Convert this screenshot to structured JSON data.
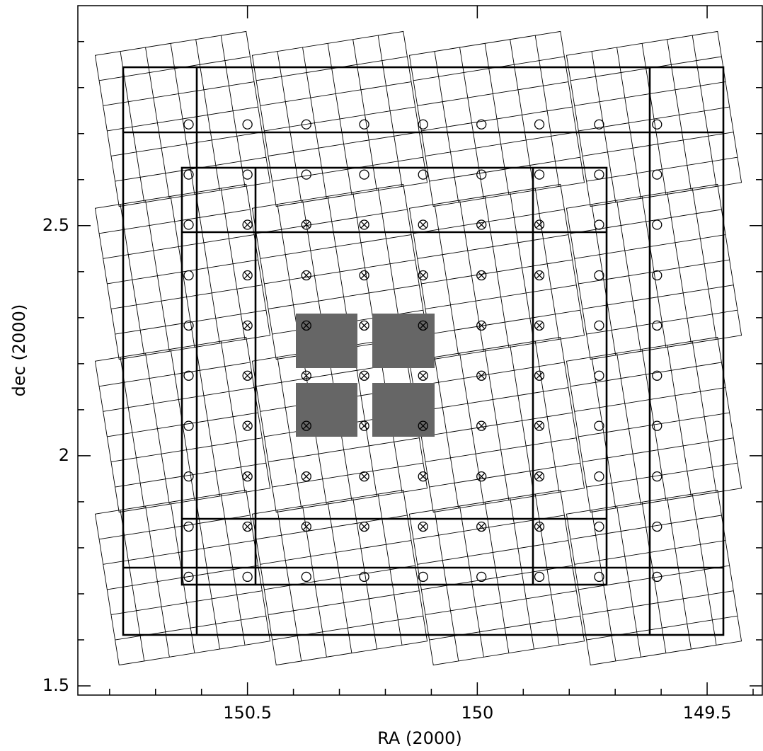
{
  "chart_data": {
    "type": "scatter",
    "x_label": "RA (2000)",
    "y_label": "dec (2000)",
    "xlim": [
      150.869,
      149.38
    ],
    "ylim": [
      1.48,
      2.978
    ],
    "xticks": [
      150.5,
      150,
      149.5
    ],
    "yticks": [
      1.5,
      2,
      2.5
    ],
    "xminorticks": [
      150.8,
      150.7,
      150.6,
      150.4,
      150.3,
      150.2,
      150.1,
      149.9,
      149.8,
      149.7,
      149.6,
      149.4
    ],
    "yminorticks": [
      1.6,
      1.7,
      1.8,
      1.9,
      2.1,
      2.2,
      2.3,
      2.4,
      2.6,
      2.7,
      2.8,
      2.9
    ],
    "series": [
      {
        "marker": "circle",
        "color": "#000000",
        "x": [
          150.628,
          150.5,
          150.372,
          150.246,
          150.118,
          149.991,
          149.865,
          149.735,
          149.609,
          150.628,
          150.5,
          150.372,
          150.246,
          150.118,
          149.991,
          149.865,
          149.735,
          149.609,
          150.628,
          150.5,
          150.372,
          150.246,
          150.118,
          149.991,
          149.865,
          149.735,
          149.609,
          150.628,
          149.735,
          149.609,
          150.628,
          149.735,
          149.609,
          150.628,
          149.735,
          149.609,
          150.628,
          149.735,
          149.609,
          150.628,
          149.735,
          149.609,
          150.628,
          149.735,
          149.609,
          150.628,
          149.735,
          149.609
        ],
        "values": [
          2.72,
          2.72,
          2.72,
          2.72,
          2.72,
          2.72,
          2.72,
          2.72,
          2.72,
          2.611,
          2.611,
          2.611,
          2.611,
          2.611,
          2.611,
          2.611,
          2.611,
          2.611,
          1.737,
          1.737,
          1.737,
          1.737,
          1.737,
          1.737,
          1.737,
          1.737,
          1.737,
          2.502,
          2.502,
          2.502,
          2.392,
          2.392,
          2.392,
          2.283,
          2.283,
          2.283,
          2.174,
          2.174,
          2.174,
          2.065,
          2.065,
          2.065,
          1.955,
          1.955,
          1.955,
          1.846,
          1.846,
          1.846
        ]
      },
      {
        "marker": "circle-cross",
        "color": "#000000",
        "x": [
          150.5,
          150.372,
          150.246,
          150.118,
          149.991,
          149.865,
          150.5,
          150.372,
          150.246,
          150.118,
          149.991,
          149.865,
          150.5,
          150.372,
          150.246,
          150.118,
          149.991,
          149.865,
          150.5,
          150.372,
          150.246,
          150.118,
          149.991,
          149.865,
          150.5,
          150.372,
          150.246,
          150.118,
          149.991,
          149.865,
          150.5,
          150.372,
          150.246,
          150.118,
          149.991,
          149.865,
          150.5,
          150.372,
          150.246,
          150.118,
          149.991,
          149.865
        ],
        "values": [
          2.502,
          2.502,
          2.502,
          2.502,
          2.502,
          2.502,
          2.392,
          2.392,
          2.392,
          2.392,
          2.392,
          2.392,
          2.283,
          2.283,
          2.283,
          2.283,
          2.283,
          2.283,
          2.174,
          2.174,
          2.174,
          2.174,
          2.174,
          2.174,
          2.065,
          2.065,
          2.065,
          2.065,
          2.065,
          2.065,
          1.955,
          1.955,
          1.955,
          1.955,
          1.955,
          1.955,
          1.846,
          1.846,
          1.846,
          1.846,
          1.846,
          1.846
        ]
      }
    ]
  }
}
